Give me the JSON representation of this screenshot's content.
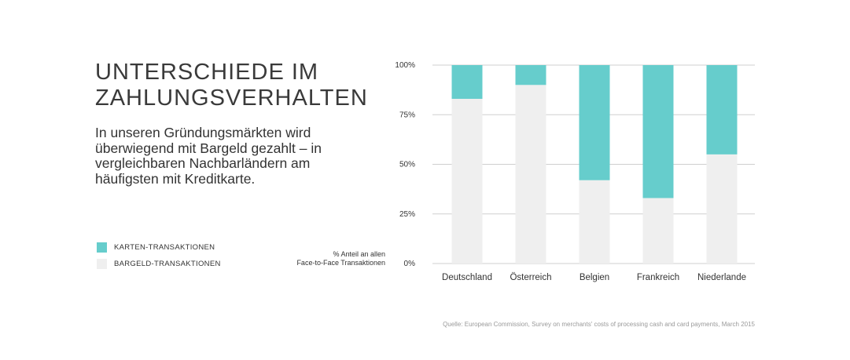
{
  "heading": {
    "line1": "UNTERSCHIEDE IM",
    "line2": "ZAHLUNGSVERHALTEN"
  },
  "subtitle": "In unseren Gründungsmärkten wird überwiegend mit Bargeld gezahlt – in vergleichbaren Nachbarländern am häufigsten mit Kreditkarte.",
  "legend": {
    "items": [
      {
        "label": "KARTEN-TRANSAKTIONEN",
        "color": "#66cdcc"
      },
      {
        "label": "BARGELD-TRANSAKTIONEN",
        "color": "#efefef"
      }
    ]
  },
  "unit_note": {
    "line1": "% Anteil an allen",
    "line2": "Face-to-Face Transaktionen"
  },
  "source": "Quelle: European Commission, Survey on merchants' costs of processing cash and card payments, March 2015",
  "colors": {
    "card": "#66cdcc",
    "cash": "#efefef",
    "grid": "#cfcfcf"
  },
  "chart_data": {
    "type": "bar",
    "stacked": true,
    "categories": [
      "Deutschland",
      "Österreich",
      "Belgien",
      "Frankreich",
      "Niederlande"
    ],
    "series": [
      {
        "name": "BARGELD-TRANSAKTIONEN",
        "values": [
          83,
          90,
          42,
          33,
          55
        ]
      },
      {
        "name": "KARTEN-TRANSAKTIONEN",
        "values": [
          17,
          10,
          58,
          67,
          45
        ]
      }
    ],
    "ylim": [
      0,
      100
    ],
    "yticks": [
      "0%",
      "25%",
      "50%",
      "75%",
      "100%"
    ],
    "grid": true,
    "legend_position": "left"
  }
}
